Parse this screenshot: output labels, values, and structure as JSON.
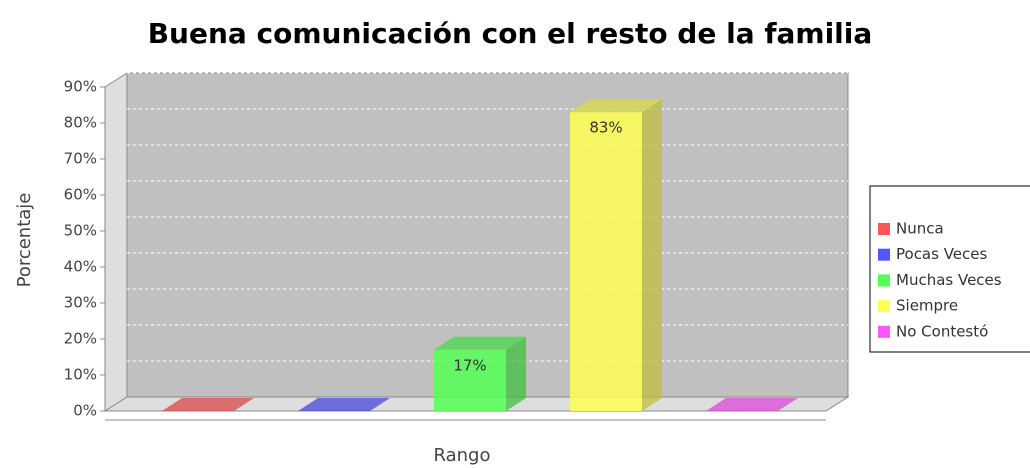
{
  "chart_data": {
    "type": "bar3d",
    "title": "Buena comunicación con el resto de la familia",
    "x_label": "Rango",
    "y_label": "Porcentaje",
    "categories": [
      null
    ],
    "series": [
      {
        "name": "Nunca",
        "color": "#ff5555",
        "values": [
          0
        ]
      },
      {
        "name": "Pocas Veces",
        "color": "#5555ff",
        "values": [
          0
        ]
      },
      {
        "name": "Muchas Veces",
        "color": "#55ff55",
        "values": [
          17
        ],
        "value_labels": [
          "17%"
        ]
      },
      {
        "name": "Siempre",
        "color": "#ffff55",
        "values": [
          83
        ],
        "value_labels": [
          "83%"
        ]
      },
      {
        "name": "No Contestó",
        "color": "#ff55ff",
        "values": [
          0
        ]
      }
    ],
    "ylim": [
      0,
      90
    ],
    "yticks": [
      {
        "value": 0,
        "label": "0%"
      },
      {
        "value": 10,
        "label": "10%"
      },
      {
        "value": 20,
        "label": "20%"
      },
      {
        "value": 30,
        "label": "30%"
      },
      {
        "value": 40,
        "label": "40%"
      },
      {
        "value": 50,
        "label": "50%"
      },
      {
        "value": 60,
        "label": "60%"
      },
      {
        "value": 70,
        "label": "70%"
      },
      {
        "value": 80,
        "label": "80%"
      },
      {
        "value": 90,
        "label": "90%"
      }
    ],
    "grid": true,
    "legend": "right"
  }
}
